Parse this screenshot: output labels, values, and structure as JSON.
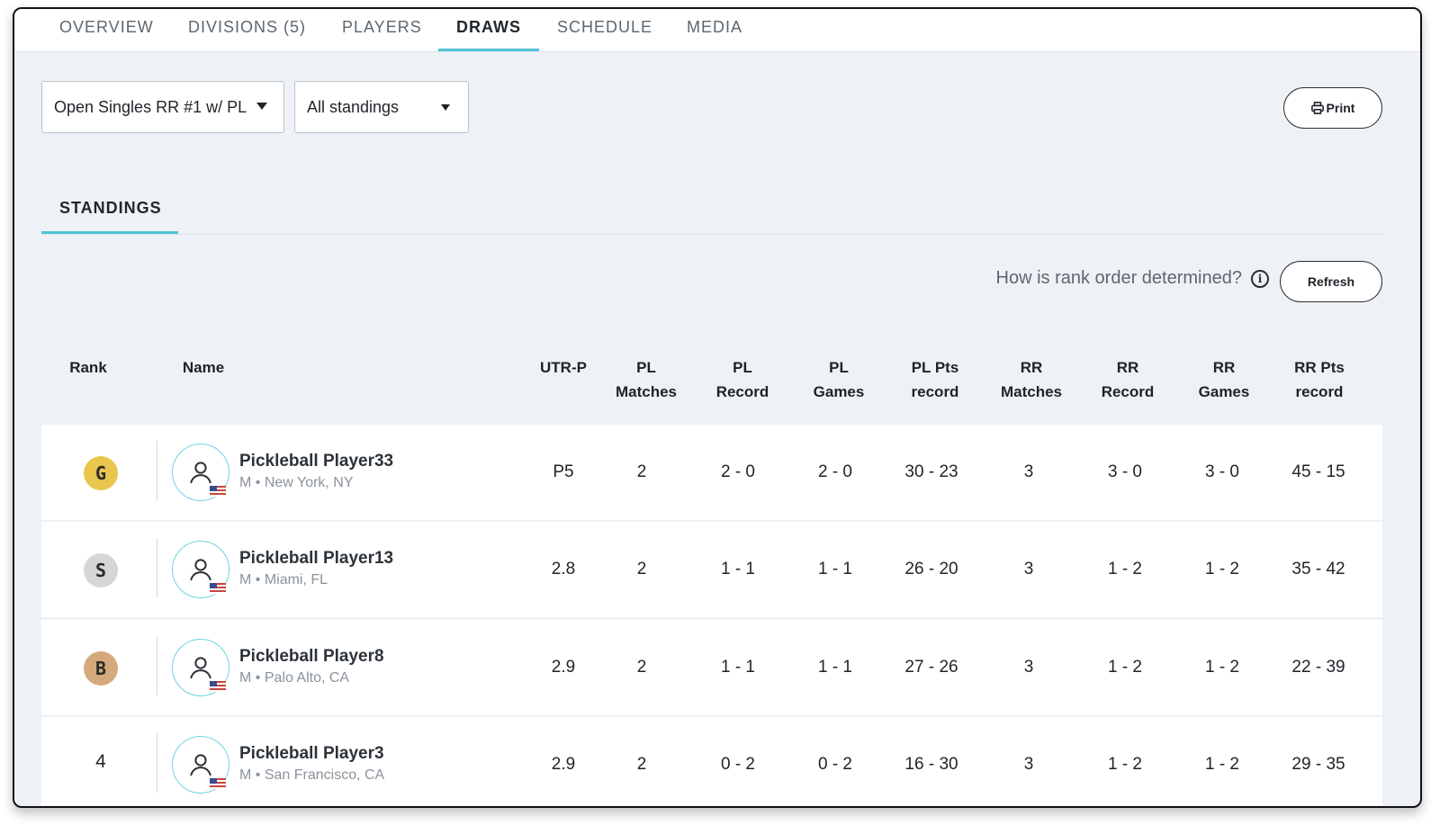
{
  "nav": {
    "tabs": [
      {
        "label": "OVERVIEW"
      },
      {
        "label": "DIVISIONS (5)"
      },
      {
        "label": "PLAYERS"
      },
      {
        "label": "DRAWS"
      },
      {
        "label": "SCHEDULE"
      },
      {
        "label": "MEDIA"
      }
    ],
    "active_tab": "DRAWS"
  },
  "filters": {
    "division_select": "Open Singles RR #1 w/ PL",
    "standings_select": "All standings"
  },
  "actions": {
    "print_label": "Print",
    "refresh_label": "Refresh"
  },
  "subtabs": {
    "standings_label": "STANDINGS"
  },
  "rank_help": "How is rank order determined?",
  "table": {
    "headers": {
      "rank": "Rank",
      "name": "Name",
      "utr": "UTR-P",
      "pl_matches": [
        "PL",
        "Matches"
      ],
      "pl_record": [
        "PL",
        "Record"
      ],
      "pl_games": [
        "PL",
        "Games"
      ],
      "pl_pts": [
        "PL Pts",
        "record"
      ],
      "rr_matches": [
        "RR",
        "Matches"
      ],
      "rr_record": [
        "RR",
        "Record"
      ],
      "rr_games": [
        "RR",
        "Games"
      ],
      "rr_pts": [
        "RR Pts",
        "record"
      ]
    },
    "rows": [
      {
        "rank": "G",
        "medal_color": "#e9c74e",
        "name": "Pickleball Player33",
        "meta": "M • New York, NY",
        "utr": "P5",
        "pl_matches": "2",
        "pl_record": "2 - 0",
        "pl_games": "2 - 0",
        "pl_pts": "30 - 23",
        "rr_matches": "3",
        "rr_record": "3 - 0",
        "rr_games": "3 - 0",
        "rr_pts": "45 - 15"
      },
      {
        "rank": "S",
        "medal_color": "#d4d6d8",
        "name": "Pickleball Player13",
        "meta": "M • Miami, FL",
        "utr": "2.8",
        "pl_matches": "2",
        "pl_record": "1 - 1",
        "pl_games": "1 - 1",
        "pl_pts": "26 - 20",
        "rr_matches": "3",
        "rr_record": "1 - 2",
        "rr_games": "1 - 2",
        "rr_pts": "35 - 42"
      },
      {
        "rank": "B",
        "medal_color": "#d4a97c",
        "name": "Pickleball Player8",
        "meta": "M • Palo Alto, CA",
        "utr": "2.9",
        "pl_matches": "2",
        "pl_record": "1 - 1",
        "pl_games": "1 - 1",
        "pl_pts": "27 - 26",
        "rr_matches": "3",
        "rr_record": "1 - 2",
        "rr_games": "1 - 2",
        "rr_pts": "22 - 39"
      },
      {
        "rank": "4",
        "medal_color": "",
        "name": "Pickleball Player3",
        "meta": "M • San Francisco, CA",
        "utr": "2.9",
        "pl_matches": "2",
        "pl_record": "0 - 2",
        "pl_games": "0 - 2",
        "pl_pts": "16 - 30",
        "rr_matches": "3",
        "rr_record": "1 - 2",
        "rr_games": "1 - 2",
        "rr_pts": "29 - 35"
      }
    ]
  }
}
